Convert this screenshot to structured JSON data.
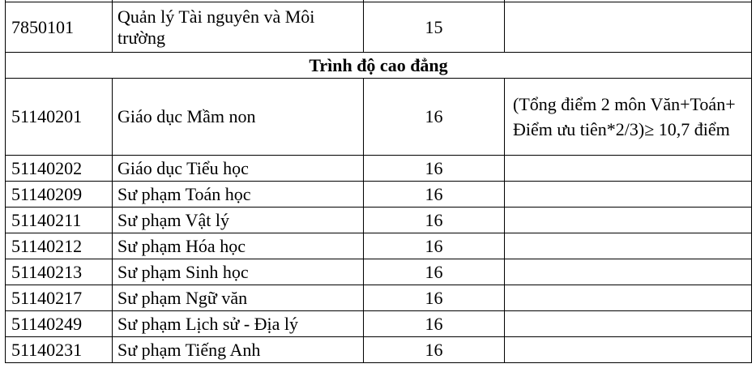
{
  "rows_top": [
    {
      "code": "7850101",
      "name": "Quản lý Tài nguyên và Môi trường",
      "score": "15",
      "note": ""
    }
  ],
  "section_title": "Trình độ cao đẳng",
  "rows": [
    {
      "code": "51140201",
      "name": "Giáo dục Mầm non",
      "score": "16",
      "note": " (Tổng điểm 2 môn Văn+Toán+ Điểm ưu tiên*2/3)≥ 10,7 điểm"
    },
    {
      "code": "51140202",
      "name": "Giáo dục Tiểu học",
      "score": "16",
      "note": ""
    },
    {
      "code": "51140209",
      "name": "Sư phạm Toán học",
      "score": "16",
      "note": ""
    },
    {
      "code": "51140211",
      "name": "Sư phạm Vật lý",
      "score": "16",
      "note": ""
    },
    {
      "code": "51140212",
      "name": "Sư phạm Hóa học",
      "score": "16",
      "note": ""
    },
    {
      "code": "51140213",
      "name": "Sư phạm Sinh học",
      "score": "16",
      "note": ""
    },
    {
      "code": "51140217",
      "name": "Sư phạm Ngữ văn",
      "score": "16",
      "note": ""
    },
    {
      "code": "51140249",
      "name": "Sư phạm Lịch sử - Địa lý",
      "score": "16",
      "note": ""
    },
    {
      "code": "51140231",
      "name": "Sư phạm Tiếng Anh",
      "score": "16",
      "note": ""
    }
  ]
}
